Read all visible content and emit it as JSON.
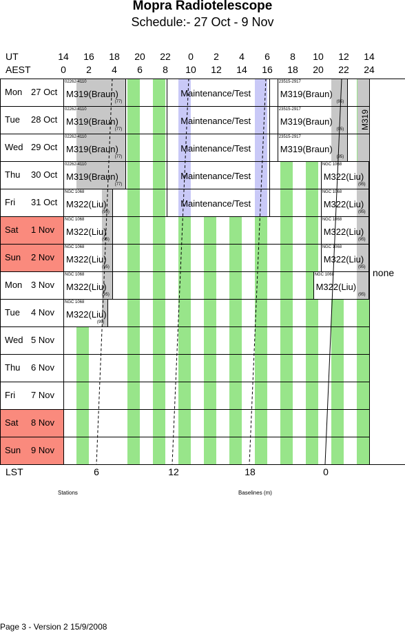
{
  "header": {
    "title": "Mopra Radiotelescope",
    "subtitle": "Schedule:- 27 Oct - 9 Nov"
  },
  "time_axis": {
    "ut_label": "UT",
    "aest_label": "AEST",
    "ut_ticks": [
      "14",
      "16",
      "18",
      "20",
      "22",
      "0",
      "2",
      "4",
      "6",
      "8",
      "10",
      "12",
      "14"
    ],
    "aest_ticks": [
      "0",
      "2",
      "4",
      "6",
      "8",
      "10",
      "12",
      "14",
      "16",
      "18",
      "20",
      "22",
      "24"
    ]
  },
  "days": [
    {
      "weekday": "Mon",
      "date": "27 Oct",
      "weekend": false
    },
    {
      "weekday": "Tue",
      "date": "28 Oct",
      "weekend": false
    },
    {
      "weekday": "Wed",
      "date": "29 Oct",
      "weekend": false
    },
    {
      "weekday": "Thu",
      "date": "30 Oct",
      "weekend": false
    },
    {
      "weekday": "Fri",
      "date": "31 Oct",
      "weekend": false
    },
    {
      "weekday": "Sat",
      "date": "1 Nov",
      "weekend": true
    },
    {
      "weekday": "Sun",
      "date": "2 Nov",
      "weekend": true
    },
    {
      "weekday": "Mon",
      "date": "3 Nov",
      "weekend": false
    },
    {
      "weekday": "Tue",
      "date": "4 Nov",
      "weekend": false
    },
    {
      "weekday": "Wed",
      "date": "5 Nov",
      "weekend": false
    },
    {
      "weekday": "Thu",
      "date": "6 Nov",
      "weekend": false
    },
    {
      "weekday": "Fri",
      "date": "7 Nov",
      "weekend": false
    },
    {
      "weekday": "Sat",
      "date": "8 Nov",
      "weekend": true
    },
    {
      "weekday": "Sun",
      "date": "9 Nov",
      "weekend": true
    }
  ],
  "blocks": {
    "m319_braun_morning": {
      "source": "02262-4110",
      "project": "M319(Braun)",
      "rating": "(77)"
    },
    "m319_braun_evening": {
      "source": "23515-2917",
      "project": "M319(Braun)",
      "rating": "(95)"
    },
    "m322_liu": {
      "source": "NGC 1068",
      "project": "M322(Liu)",
      "rating": "(95)"
    },
    "maintenance": {
      "label": "Maintenance/Test"
    },
    "m319_vertical": {
      "label": "M319"
    },
    "none_label": "none"
  },
  "footer": {
    "lst_label": "LST",
    "lst_ticks": [
      "6",
      "12",
      "18",
      "0"
    ],
    "stations_label": "Stations",
    "baselines_label": "Baselines (m)",
    "page_info": "Page 3 - Version 2  15/9/2008"
  },
  "colors": {
    "weekend": "#fa8a7d",
    "lane": "#98e58a",
    "maintenance": "#c9c9f7",
    "grey": "#c7c7c7"
  }
}
